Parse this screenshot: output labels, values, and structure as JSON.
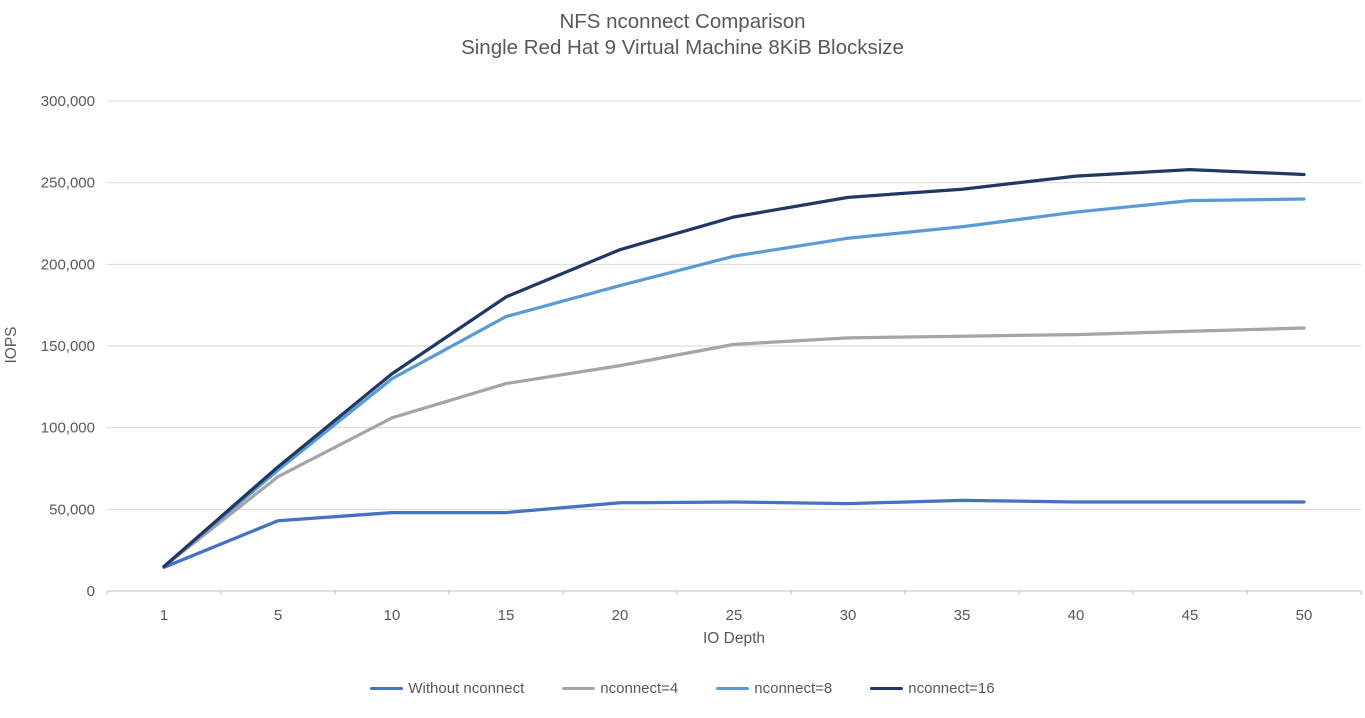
{
  "chart_data": {
    "type": "line",
    "title": "NFS nconnect Comparison",
    "subtitle": "Single Red Hat 9 Virtual Machine 8KiB Blocksize",
    "xlabel": "IO Depth",
    "ylabel": "IOPS",
    "x_categories": [
      1,
      5,
      10,
      15,
      20,
      25,
      30,
      35,
      40,
      45,
      50
    ],
    "x_tick_labels": [
      "1",
      "5",
      "10",
      "15",
      "20",
      "25",
      "30",
      "35",
      "40",
      "45",
      "50"
    ],
    "ylim": [
      0,
      300000
    ],
    "y_ticks": [
      0,
      50000,
      100000,
      150000,
      200000,
      250000,
      300000
    ],
    "y_tick_labels": [
      "0",
      "50,000",
      "100,000",
      "150,000",
      "200,000",
      "250,000",
      "300,000"
    ],
    "grid": "horizontal",
    "legend_position": "bottom",
    "series": [
      {
        "name": "Without nconnect",
        "color": "#4472C4",
        "values": [
          14500,
          43000,
          48000,
          48000,
          54000,
          54500,
          53500,
          55500,
          54500,
          54500,
          54500
        ]
      },
      {
        "name": "nconnect=4",
        "color": "#A5A5A5",
        "values": [
          15000,
          70000,
          106000,
          127000,
          138000,
          151000,
          155000,
          156000,
          157000,
          159000,
          161000
        ]
      },
      {
        "name": "nconnect=8",
        "color": "#5B9BD5",
        "values": [
          15000,
          74000,
          130000,
          168000,
          187000,
          205000,
          216000,
          223000,
          232000,
          239000,
          240000
        ]
      },
      {
        "name": "nconnect=16",
        "color": "#1F3864",
        "values": [
          15000,
          76000,
          133000,
          180000,
          209000,
          229000,
          241000,
          246000,
          254000,
          258000,
          255000
        ]
      }
    ],
    "colors": {
      "gridline": "#D9D9D9",
      "axis_line": "#BFBFBF",
      "tick_text": "#595959",
      "title_text": "#595959",
      "background": "#FFFFFF"
    }
  }
}
